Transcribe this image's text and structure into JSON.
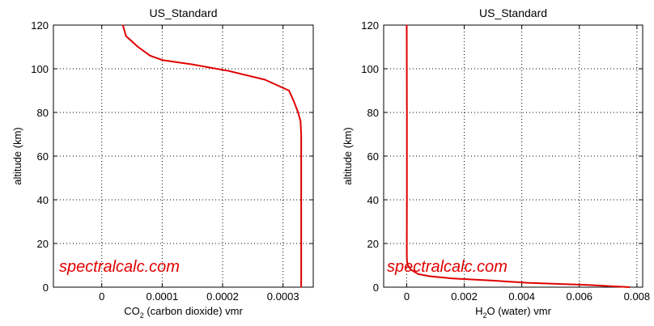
{
  "watermark": "spectralcalc.com",
  "colors": {
    "series": "#e00000",
    "watermark": "#e00000"
  },
  "chart_data": [
    {
      "type": "line",
      "title": "US_Standard",
      "xlabel_main": "CO",
      "xlabel_sub": "2",
      "xlabel_rest": " (carbon dioxide) vmr",
      "ylabel": "altitude (km)",
      "xlim": [
        -8e-05,
        0.00035
      ],
      "ylim": [
        0,
        120
      ],
      "xticks": [
        0,
        0.0001,
        0.0002,
        0.0003
      ],
      "xtick_labels": [
        "0",
        "0.0001",
        "0.0002",
        "0.0003"
      ],
      "yticks": [
        0,
        20,
        40,
        60,
        80,
        100,
        120
      ],
      "ytick_labels": [
        "0",
        "20",
        "40",
        "60",
        "80",
        "100",
        "120"
      ],
      "grid": true,
      "series": [
        {
          "x": [
            0.00033,
            0.00033,
            0.00033,
            0.00033,
            0.00033,
            0.000329,
            0.000325,
            0.000318,
            0.00031,
            0.00027,
            0.00021,
            0.00015,
            0.0001,
            8e-05,
            6e-05,
            4e-05,
            3.5e-05
          ],
          "y": [
            0,
            20,
            40,
            60,
            70,
            76,
            80,
            85,
            90,
            95,
            99,
            102,
            104,
            106,
            110,
            115,
            120
          ]
        }
      ]
    },
    {
      "type": "line",
      "title": "US_Standard",
      "xlabel_main": "H",
      "xlabel_sub": "2",
      "xlabel_rest": "O (water) vmr",
      "ylabel": "altitude (km)",
      "xlim": [
        -0.0008,
        0.0082
      ],
      "ylim": [
        0,
        120
      ],
      "xticks": [
        0,
        0.002,
        0.004,
        0.006,
        0.008
      ],
      "xtick_labels": [
        "0",
        "0.002",
        "0.004",
        "0.006",
        "0.008"
      ],
      "yticks": [
        0,
        20,
        40,
        60,
        80,
        100,
        120
      ],
      "ytick_labels": [
        "0",
        "20",
        "40",
        "60",
        "80",
        "100",
        "120"
      ],
      "grid": true,
      "series": [
        {
          "x": [
            0.00775,
            0.0063,
            0.0042,
            0.003,
            0.0016,
            0.0008,
            0.0004,
            0.00015,
            4e-05,
            1e-05,
            3e-06,
            4e-06,
            6e-06,
            6e-06,
            6e-06,
            4e-06,
            2e-06
          ],
          "y": [
            0,
            1,
            2,
            3,
            4,
            5,
            6,
            8,
            10,
            12,
            15,
            20,
            40,
            60,
            80,
            100,
            120
          ]
        }
      ]
    }
  ]
}
